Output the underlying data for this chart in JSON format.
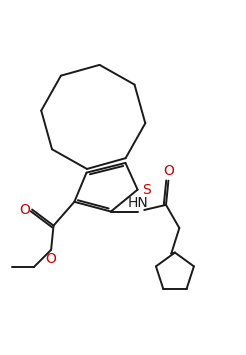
{
  "bg_color": "#ffffff",
  "line_color": "#1a1a1a",
  "S_color": "#cc0000",
  "O_color": "#cc0000",
  "lw": 1.4,
  "figsize": [
    2.46,
    3.55
  ],
  "dpi": 100,
  "xlim": [
    0,
    10
  ],
  "ylim": [
    0,
    14
  ]
}
